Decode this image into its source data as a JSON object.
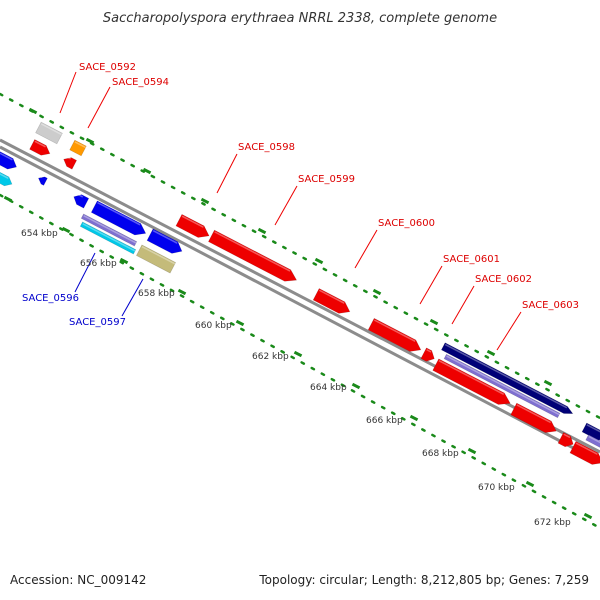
{
  "title": "Saccharopolyspora erythraea NRRL 2338, complete genome",
  "footer": {
    "accession": "Accession: NC_009142",
    "summary": "Topology: circular; Length: 8,212,805 bp; Genes: 7,259"
  },
  "kbp_labels": [
    "654 kbp",
    "656 kbp",
    "658 kbp",
    "660 kbp",
    "662 kbp",
    "664 kbp",
    "666 kbp",
    "668 kbp",
    "670 kbp",
    "672 kbp"
  ],
  "gene_labels": [
    {
      "name": "SACE_0592",
      "color": "#dd0000"
    },
    {
      "name": "SACE_0594",
      "color": "#dd0000"
    },
    {
      "name": "SACE_0598",
      "color": "#dd0000"
    },
    {
      "name": "SACE_0599",
      "color": "#dd0000"
    },
    {
      "name": "SACE_0600",
      "color": "#dd0000"
    },
    {
      "name": "SACE_0601",
      "color": "#dd0000"
    },
    {
      "name": "SACE_0602",
      "color": "#dd0000"
    },
    {
      "name": "SACE_0603",
      "color": "#dd0000"
    },
    {
      "name": "SACE_0596",
      "color": "#0000cc"
    },
    {
      "name": "SACE_0597",
      "color": "#0000cc"
    }
  ],
  "colors": {
    "backbone": "#8c8c8c",
    "tick": "#1a8a1a",
    "cds_red": "#ee0000",
    "cds_blue": "#0000ee",
    "cyan": "#00c8e8",
    "navy": "#000077",
    "lavender": "#7e6fd0",
    "olive": "#c4bb7a",
    "orange": "#ff9900",
    "grey_gene": "#cccccc"
  }
}
